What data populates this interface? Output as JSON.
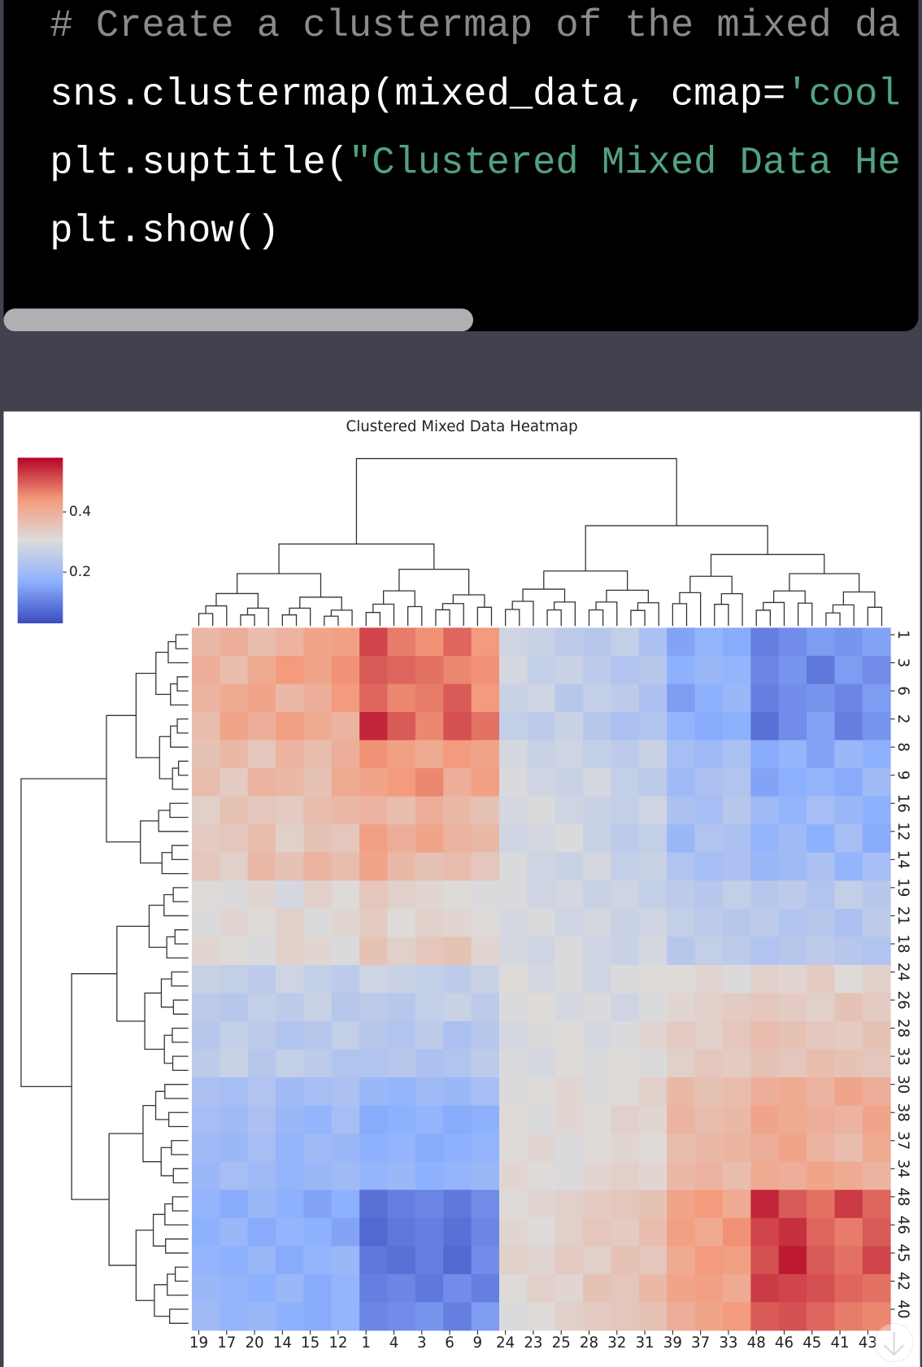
{
  "code": {
    "lines": [
      [
        {
          "text": "# Create a clustermap of the mixed da",
          "color": "#8a8a8a"
        }
      ],
      [
        {
          "text": "sns.clustermap(mixed_data, cmap=",
          "color": "#ffffff"
        },
        {
          "text": "'cool",
          "color": "#52a27f"
        }
      ],
      [
        {
          "text": "plt.suptitle(",
          "color": "#ffffff"
        },
        {
          "text": "\"Clustered Mixed Data He",
          "color": "#52a27f"
        }
      ],
      [
        {
          "text": "plt.show()",
          "color": "#ffffff"
        }
      ]
    ]
  },
  "chart_data": {
    "type": "heatmap",
    "title": "Clustered Mixed Data Heatmap",
    "x_categories": [
      "19",
      "17",
      "20",
      "14",
      "15",
      "12",
      "1",
      "4",
      "3",
      "6",
      "9",
      "24",
      "23",
      "25",
      "28",
      "32",
      "31",
      "39",
      "37",
      "33",
      "48",
      "46",
      "45",
      "41",
      "43"
    ],
    "y_categories": [
      "1",
      "3",
      "6",
      "2",
      "8",
      "9",
      "16",
      "12",
      "14",
      "19",
      "21",
      "18",
      "24",
      "26",
      "28",
      "33",
      "30",
      "38",
      "37",
      "34",
      "48",
      "46",
      "45",
      "42",
      "40"
    ],
    "values": [
      [
        0.38,
        0.4,
        0.37,
        0.39,
        0.42,
        0.43,
        0.52,
        0.47,
        0.45,
        0.49,
        0.44,
        0.28,
        0.27,
        0.25,
        0.24,
        0.26,
        0.22,
        0.15,
        0.18,
        0.16,
        0.1,
        0.12,
        0.14,
        0.13,
        0.15
      ],
      [
        0.4,
        0.37,
        0.41,
        0.44,
        0.42,
        0.45,
        0.5,
        0.49,
        0.48,
        0.46,
        0.45,
        0.29,
        0.26,
        0.27,
        0.25,
        0.23,
        0.24,
        0.17,
        0.19,
        0.18,
        0.11,
        0.13,
        0.09,
        0.14,
        0.12
      ],
      [
        0.39,
        0.41,
        0.42,
        0.38,
        0.4,
        0.44,
        0.49,
        0.46,
        0.47,
        0.5,
        0.44,
        0.27,
        0.28,
        0.24,
        0.26,
        0.25,
        0.22,
        0.14,
        0.17,
        0.19,
        0.1,
        0.12,
        0.13,
        0.11,
        0.14
      ],
      [
        0.37,
        0.42,
        0.4,
        0.43,
        0.41,
        0.39,
        0.55,
        0.5,
        0.46,
        0.51,
        0.48,
        0.26,
        0.25,
        0.27,
        0.24,
        0.22,
        0.23,
        0.18,
        0.16,
        0.17,
        0.08,
        0.12,
        0.15,
        0.1,
        0.13
      ],
      [
        0.36,
        0.38,
        0.35,
        0.39,
        0.37,
        0.4,
        0.45,
        0.43,
        0.41,
        0.44,
        0.42,
        0.29,
        0.27,
        0.28,
        0.26,
        0.25,
        0.27,
        0.21,
        0.2,
        0.22,
        0.16,
        0.18,
        0.15,
        0.19,
        0.17
      ],
      [
        0.37,
        0.34,
        0.39,
        0.38,
        0.36,
        0.41,
        0.42,
        0.44,
        0.46,
        0.4,
        0.43,
        0.3,
        0.28,
        0.27,
        0.29,
        0.26,
        0.25,
        0.2,
        0.22,
        0.23,
        0.15,
        0.17,
        0.18,
        0.16,
        0.2
      ],
      [
        0.33,
        0.36,
        0.35,
        0.34,
        0.37,
        0.38,
        0.39,
        0.37,
        0.4,
        0.38,
        0.36,
        0.29,
        0.3,
        0.28,
        0.27,
        0.26,
        0.28,
        0.22,
        0.21,
        0.24,
        0.2,
        0.18,
        0.21,
        0.19,
        0.17
      ],
      [
        0.34,
        0.35,
        0.37,
        0.33,
        0.36,
        0.35,
        0.43,
        0.4,
        0.42,
        0.39,
        0.38,
        0.28,
        0.29,
        0.3,
        0.27,
        0.25,
        0.26,
        0.19,
        0.23,
        0.22,
        0.18,
        0.2,
        0.17,
        0.21,
        0.16
      ],
      [
        0.35,
        0.33,
        0.38,
        0.36,
        0.39,
        0.37,
        0.42,
        0.38,
        0.36,
        0.37,
        0.35,
        0.3,
        0.28,
        0.27,
        0.29,
        0.26,
        0.27,
        0.23,
        0.21,
        0.22,
        0.19,
        0.2,
        0.22,
        0.18,
        0.21
      ],
      [
        0.31,
        0.3,
        0.32,
        0.29,
        0.33,
        0.31,
        0.35,
        0.33,
        0.32,
        0.31,
        0.3,
        0.3,
        0.28,
        0.29,
        0.27,
        0.28,
        0.26,
        0.25,
        0.24,
        0.26,
        0.24,
        0.25,
        0.23,
        0.26,
        0.24
      ],
      [
        0.3,
        0.32,
        0.31,
        0.33,
        0.3,
        0.32,
        0.34,
        0.31,
        0.33,
        0.32,
        0.31,
        0.29,
        0.3,
        0.28,
        0.29,
        0.27,
        0.28,
        0.26,
        0.25,
        0.24,
        0.25,
        0.23,
        0.24,
        0.22,
        0.25
      ],
      [
        0.32,
        0.31,
        0.3,
        0.33,
        0.32,
        0.3,
        0.36,
        0.33,
        0.35,
        0.36,
        0.32,
        0.29,
        0.28,
        0.3,
        0.28,
        0.27,
        0.29,
        0.24,
        0.26,
        0.25,
        0.23,
        0.24,
        0.25,
        0.24,
        0.23
      ],
      [
        0.27,
        0.26,
        0.25,
        0.28,
        0.26,
        0.25,
        0.28,
        0.27,
        0.26,
        0.25,
        0.27,
        0.31,
        0.29,
        0.3,
        0.28,
        0.3,
        0.31,
        0.31,
        0.32,
        0.3,
        0.33,
        0.32,
        0.34,
        0.31,
        0.33
      ],
      [
        0.25,
        0.24,
        0.26,
        0.25,
        0.27,
        0.24,
        0.25,
        0.24,
        0.26,
        0.27,
        0.25,
        0.3,
        0.31,
        0.29,
        0.3,
        0.28,
        0.3,
        0.32,
        0.33,
        0.34,
        0.35,
        0.34,
        0.33,
        0.36,
        0.34
      ],
      [
        0.24,
        0.26,
        0.25,
        0.23,
        0.24,
        0.26,
        0.24,
        0.23,
        0.25,
        0.22,
        0.24,
        0.29,
        0.3,
        0.31,
        0.29,
        0.3,
        0.32,
        0.34,
        0.33,
        0.35,
        0.37,
        0.36,
        0.35,
        0.34,
        0.36
      ],
      [
        0.25,
        0.27,
        0.24,
        0.26,
        0.25,
        0.23,
        0.23,
        0.24,
        0.22,
        0.23,
        0.25,
        0.3,
        0.29,
        0.31,
        0.3,
        0.31,
        0.3,
        0.33,
        0.35,
        0.34,
        0.36,
        0.35,
        0.37,
        0.36,
        0.35
      ],
      [
        0.22,
        0.21,
        0.23,
        0.2,
        0.21,
        0.22,
        0.19,
        0.18,
        0.2,
        0.19,
        0.21,
        0.3,
        0.31,
        0.32,
        0.3,
        0.31,
        0.33,
        0.38,
        0.36,
        0.37,
        0.4,
        0.41,
        0.39,
        0.42,
        0.4
      ],
      [
        0.21,
        0.2,
        0.22,
        0.19,
        0.18,
        0.21,
        0.16,
        0.17,
        0.18,
        0.16,
        0.17,
        0.31,
        0.3,
        0.32,
        0.31,
        0.33,
        0.32,
        0.39,
        0.37,
        0.38,
        0.42,
        0.41,
        0.4,
        0.39,
        0.42
      ],
      [
        0.2,
        0.19,
        0.21,
        0.18,
        0.2,
        0.19,
        0.17,
        0.18,
        0.16,
        0.17,
        0.18,
        0.31,
        0.32,
        0.3,
        0.31,
        0.32,
        0.31,
        0.37,
        0.38,
        0.39,
        0.4,
        0.42,
        0.39,
        0.37,
        0.41
      ],
      [
        0.19,
        0.21,
        0.2,
        0.18,
        0.19,
        0.2,
        0.18,
        0.19,
        0.17,
        0.18,
        0.19,
        0.32,
        0.31,
        0.3,
        0.32,
        0.33,
        0.32,
        0.38,
        0.39,
        0.37,
        0.41,
        0.4,
        0.42,
        0.41,
        0.39
      ],
      [
        0.18,
        0.16,
        0.19,
        0.17,
        0.15,
        0.17,
        0.08,
        0.1,
        0.11,
        0.09,
        0.12,
        0.31,
        0.32,
        0.33,
        0.34,
        0.35,
        0.36,
        0.42,
        0.44,
        0.41,
        0.55,
        0.5,
        0.48,
        0.53,
        0.49
      ],
      [
        0.17,
        0.19,
        0.16,
        0.18,
        0.17,
        0.15,
        0.07,
        0.09,
        0.1,
        0.08,
        0.11,
        0.32,
        0.31,
        0.33,
        0.35,
        0.34,
        0.37,
        0.43,
        0.41,
        0.45,
        0.52,
        0.54,
        0.49,
        0.47,
        0.5
      ],
      [
        0.18,
        0.17,
        0.19,
        0.16,
        0.18,
        0.19,
        0.09,
        0.08,
        0.1,
        0.07,
        0.12,
        0.33,
        0.32,
        0.34,
        0.33,
        0.36,
        0.35,
        0.41,
        0.44,
        0.43,
        0.51,
        0.56,
        0.5,
        0.48,
        0.52
      ],
      [
        0.19,
        0.18,
        0.17,
        0.19,
        0.16,
        0.18,
        0.1,
        0.11,
        0.09,
        0.12,
        0.1,
        0.31,
        0.33,
        0.32,
        0.36,
        0.35,
        0.38,
        0.42,
        0.43,
        0.41,
        0.53,
        0.52,
        0.51,
        0.49,
        0.48
      ],
      [
        0.2,
        0.18,
        0.19,
        0.17,
        0.16,
        0.18,
        0.11,
        0.12,
        0.13,
        0.1,
        0.14,
        0.3,
        0.31,
        0.33,
        0.34,
        0.35,
        0.36,
        0.4,
        0.42,
        0.44,
        0.5,
        0.51,
        0.49,
        0.47,
        0.46
      ]
    ],
    "colormap": [
      "#3b4cc0",
      "#8db0fe",
      "#dddcdc",
      "#f49a7b",
      "#b40426"
    ],
    "colorbar": {
      "vlim": [
        0.03,
        0.58
      ],
      "ticks": [
        0.2,
        0.4
      ]
    }
  }
}
